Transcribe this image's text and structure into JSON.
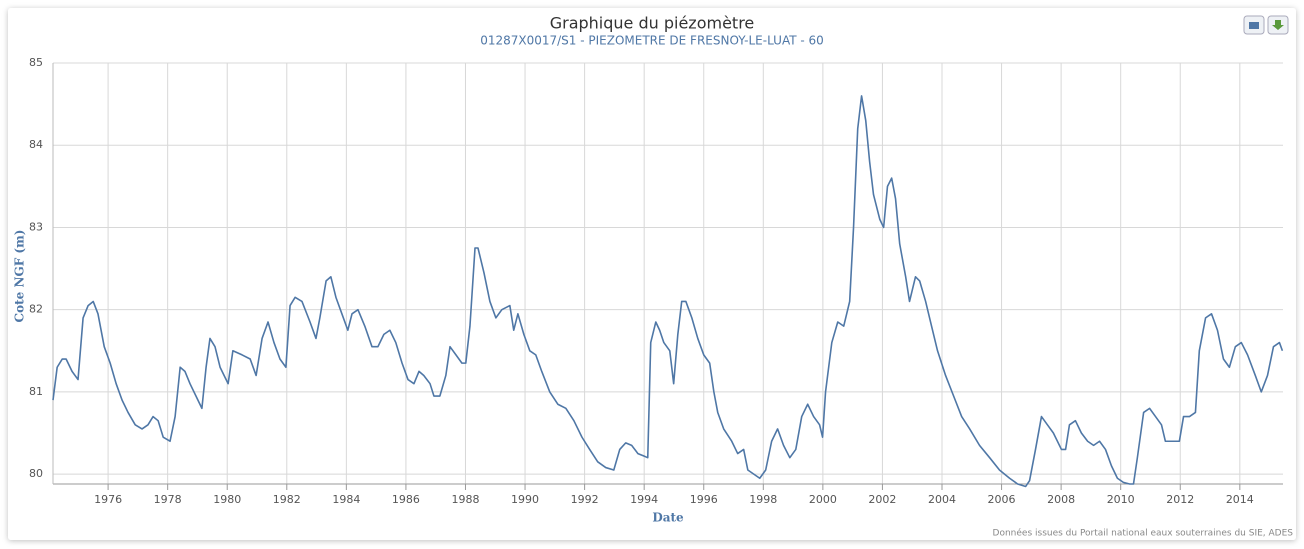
{
  "chart_data": {
    "type": "line",
    "title": "Graphique du piézomètre",
    "subtitle": "01287X0017/S1 - PIEZOMETRE DE FRESNOY-LE-LUAT - 60",
    "x_label": "Date",
    "y_label": "Cote NGF (m)",
    "credits": "Données issues du Portail national eaux souterraines du SIE, ADES",
    "grid": true,
    "xlim": [
      1974.15,
      2015.45
    ],
    "xticks": [
      1976,
      1978,
      1980,
      1982,
      1984,
      1986,
      1988,
      1990,
      1992,
      1994,
      1996,
      1998,
      2000,
      2002,
      2004,
      2006,
      2008,
      2010,
      2012,
      2014
    ],
    "ylim": [
      79.88,
      85
    ],
    "yticks": [
      80,
      81,
      82,
      83,
      84,
      85
    ],
    "x": [
      1974.15,
      1974.29,
      1974.46,
      1974.59,
      1974.79,
      1974.99,
      1975.16,
      1975.33,
      1975.5,
      1975.66,
      1975.87,
      1976.07,
      1976.27,
      1976.47,
      1976.67,
      1976.91,
      1977.14,
      1977.34,
      1977.51,
      1977.68,
      1977.85,
      1978.08,
      1978.25,
      1978.42,
      1978.58,
      1978.75,
      1978.95,
      1979.15,
      1979.29,
      1979.42,
      1979.59,
      1979.76,
      1980.03,
      1980.19,
      1980.5,
      1980.77,
      1980.97,
      1981.17,
      1981.37,
      1981.57,
      1981.77,
      1981.97,
      1982.11,
      1982.28,
      1982.51,
      1982.78,
      1982.98,
      1983.11,
      1983.32,
      1983.48,
      1983.65,
      1983.85,
      1984.05,
      1984.19,
      1984.39,
      1984.62,
      1984.86,
      1985.06,
      1985.26,
      1985.46,
      1985.66,
      1985.87,
      1986.07,
      1986.27,
      1986.44,
      1986.6,
      1986.81,
      1986.94,
      1987.14,
      1987.34,
      1987.48,
      1987.68,
      1987.88,
      1988.01,
      1988.15,
      1988.32,
      1988.42,
      1988.62,
      1988.82,
      1989.02,
      1989.22,
      1989.49,
      1989.62,
      1989.76,
      1989.96,
      1990.16,
      1990.36,
      1990.56,
      1990.83,
      1991.1,
      1991.37,
      1991.64,
      1991.91,
      1992.17,
      1992.44,
      1992.71,
      1992.98,
      1993.18,
      1993.38,
      1993.58,
      1993.79,
      1993.99,
      1994.12,
      1994.22,
      1994.39,
      1994.52,
      1994.66,
      1994.86,
      1994.99,
      1995.13,
      1995.26,
      1995.4,
      1995.6,
      1995.8,
      1996.0,
      1996.2,
      1996.34,
      1996.47,
      1996.67,
      1996.94,
      1997.14,
      1997.34,
      1997.48,
      1997.68,
      1997.88,
      1998.08,
      1998.28,
      1998.48,
      1998.68,
      1998.89,
      1999.09,
      1999.29,
      1999.49,
      1999.69,
      1999.89,
      1999.99,
      2000.09,
      2000.3,
      2000.5,
      2000.7,
      2000.9,
      2001.03,
      2001.17,
      2001.3,
      2001.44,
      2001.57,
      2001.7,
      2001.91,
      2002.04,
      2002.17,
      2002.31,
      2002.44,
      2002.58,
      2002.78,
      2002.91,
      2003.11,
      2003.25,
      2003.45,
      2003.65,
      2003.85,
      2004.12,
      2004.39,
      2004.66,
      2004.93,
      2005.26,
      2005.6,
      2005.93,
      2006.27,
      2006.54,
      2006.81,
      2006.94,
      2007.14,
      2007.34,
      2007.54,
      2007.74,
      2008.01,
      2008.15,
      2008.28,
      2008.48,
      2008.68,
      2008.89,
      2009.09,
      2009.29,
      2009.49,
      2009.69,
      2009.89,
      2010.09,
      2010.3,
      2010.43,
      2010.56,
      2010.77,
      2010.97,
      2011.17,
      2011.37,
      2011.5,
      2011.7,
      2011.97,
      2012.11,
      2012.31,
      2012.51,
      2012.64,
      2012.85,
      2013.05,
      2013.25,
      2013.45,
      2013.65,
      2013.85,
      2014.05,
      2014.26,
      2014.52,
      2014.72,
      2014.93,
      2015.13,
      2015.33,
      2015.43
    ],
    "series": [
      {
        "color": "#4f77a6",
        "values": [
          80.9,
          81.3,
          81.4,
          81.4,
          81.25,
          81.15,
          81.9,
          82.05,
          82.1,
          81.95,
          81.55,
          81.35,
          81.1,
          80.9,
          80.75,
          80.6,
          80.55,
          80.6,
          80.7,
          80.65,
          80.45,
          80.4,
          80.7,
          81.3,
          81.25,
          81.1,
          80.95,
          80.8,
          81.3,
          81.65,
          81.55,
          81.3,
          81.1,
          81.5,
          81.45,
          81.4,
          81.2,
          81.65,
          81.85,
          81.6,
          81.4,
          81.3,
          82.05,
          82.15,
          82.1,
          81.85,
          81.65,
          81.9,
          82.35,
          82.4,
          82.15,
          81.95,
          81.75,
          81.95,
          82.0,
          81.8,
          81.55,
          81.55,
          81.7,
          81.75,
          81.6,
          81.35,
          81.15,
          81.1,
          81.25,
          81.2,
          81.1,
          80.95,
          80.95,
          81.2,
          81.55,
          81.45,
          81.35,
          81.35,
          81.8,
          82.75,
          82.75,
          82.45,
          82.1,
          81.9,
          82.0,
          82.05,
          81.75,
          81.95,
          81.7,
          81.5,
          81.45,
          81.25,
          81.0,
          80.85,
          80.8,
          80.65,
          80.45,
          80.3,
          80.15,
          80.08,
          80.05,
          80.3,
          80.38,
          80.35,
          80.25,
          80.22,
          80.2,
          81.6,
          81.85,
          81.75,
          81.6,
          81.5,
          81.1,
          81.7,
          82.1,
          82.1,
          81.9,
          81.65,
          81.45,
          81.35,
          81.0,
          80.75,
          80.55,
          80.4,
          80.25,
          80.3,
          80.05,
          80.0,
          79.95,
          80.05,
          80.4,
          80.55,
          80.35,
          80.2,
          80.3,
          80.7,
          80.85,
          80.7,
          80.6,
          80.45,
          81.0,
          81.6,
          81.85,
          81.8,
          82.1,
          83.0,
          84.2,
          84.6,
          84.3,
          83.8,
          83.4,
          83.1,
          83.0,
          83.5,
          83.6,
          83.35,
          82.8,
          82.4,
          82.1,
          82.4,
          82.35,
          82.1,
          81.8,
          81.5,
          81.2,
          80.95,
          80.7,
          80.55,
          80.35,
          80.2,
          80.05,
          79.95,
          79.88,
          79.85,
          79.92,
          80.3,
          80.7,
          80.6,
          80.5,
          80.3,
          80.3,
          80.6,
          80.65,
          80.5,
          80.4,
          80.35,
          80.4,
          80.3,
          80.1,
          79.95,
          79.9,
          79.88,
          79.88,
          80.2,
          80.75,
          80.8,
          80.7,
          80.6,
          80.4,
          80.4,
          80.4,
          80.7,
          80.7,
          80.75,
          81.5,
          81.9,
          81.95,
          81.75,
          81.4,
          81.3,
          81.55,
          81.6,
          81.45,
          81.2,
          81.0,
          81.2,
          81.55,
          81.6,
          81.5
        ]
      }
    ]
  }
}
